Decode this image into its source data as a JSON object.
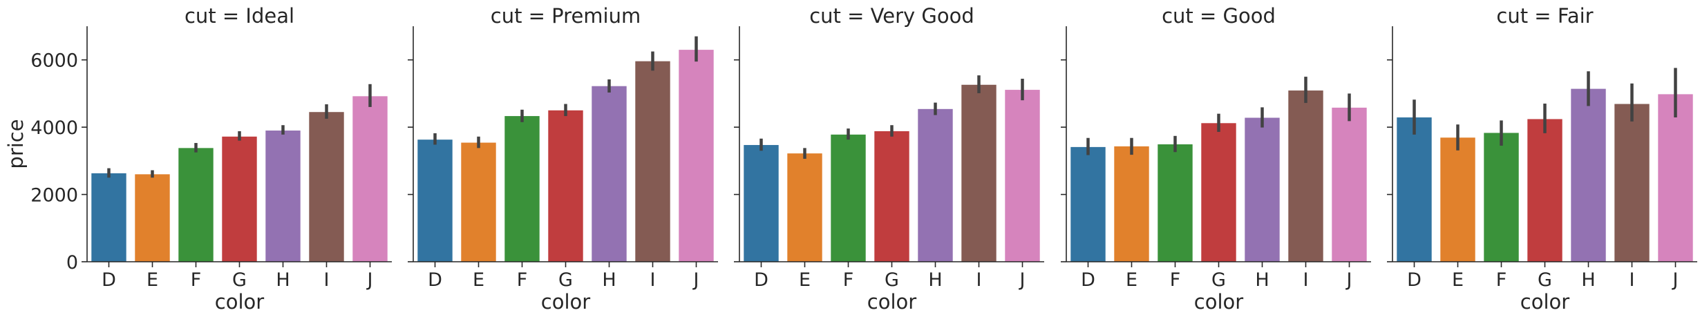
{
  "chart_data": {
    "type": "bar",
    "categories": [
      "D",
      "E",
      "F",
      "G",
      "H",
      "I",
      "J"
    ],
    "colors": [
      "#3274a1",
      "#e1812c",
      "#3a923a",
      "#c03d3e",
      "#9372b2",
      "#845b53",
      "#d684bd"
    ],
    "ylabel": "price",
    "xlabel": "color",
    "yticks": [
      0,
      2000,
      4000,
      6000
    ],
    "ylim": [
      0,
      7000
    ],
    "grid": false,
    "panels": [
      {
        "title": "cut = Ideal",
        "values": [
          2630,
          2600,
          3380,
          3720,
          3900,
          4450,
          4920
        ],
        "err_low": [
          2500,
          2500,
          3250,
          3600,
          3780,
          4250,
          4600
        ],
        "err_high": [
          2780,
          2720,
          3530,
          3880,
          4060,
          4680,
          5280
        ]
      },
      {
        "title": "cut = Premium",
        "values": [
          3630,
          3540,
          4330,
          4500,
          5220,
          5960,
          6300
        ],
        "err_low": [
          3480,
          3380,
          4150,
          4330,
          5030,
          5680,
          5950
        ],
        "err_high": [
          3820,
          3720,
          4520,
          4690,
          5420,
          6250,
          6700
        ]
      },
      {
        "title": "cut = Very Good",
        "values": [
          3470,
          3220,
          3780,
          3880,
          4540,
          5260,
          5110
        ],
        "err_low": [
          3300,
          3060,
          3630,
          3720,
          4360,
          5010,
          4800
        ],
        "err_high": [
          3660,
          3380,
          3960,
          4060,
          4730,
          5540,
          5440
        ]
      },
      {
        "title": "cut = Good",
        "values": [
          3410,
          3430,
          3490,
          4120,
          4280,
          5090,
          4580
        ],
        "err_low": [
          3170,
          3180,
          3260,
          3860,
          3990,
          4720,
          4180
        ],
        "err_high": [
          3680,
          3680,
          3740,
          4400,
          4590,
          5500,
          5000
        ]
      },
      {
        "title": "cut = Fair",
        "values": [
          4290,
          3690,
          3830,
          4240,
          5140,
          4690,
          4980
        ],
        "err_low": [
          3780,
          3310,
          3450,
          3820,
          4630,
          4170,
          4290
        ],
        "err_high": [
          4820,
          4080,
          4200,
          4700,
          5660,
          5300,
          5760
        ]
      }
    ]
  }
}
